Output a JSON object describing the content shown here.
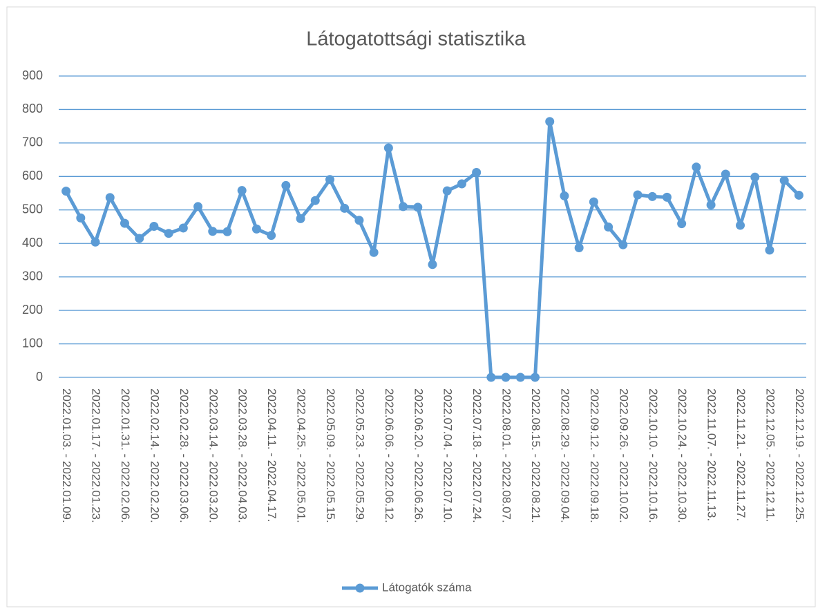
{
  "chart_data": {
    "type": "line",
    "title": "Látogatottsági statisztika",
    "categories": [
      "2022.01.03. - 2022.01.09.",
      null,
      "2022.01.17. - 2022.01.23.",
      null,
      "2022.01.31. - 2022.02.06.",
      null,
      "2022.02.14. - 2022.02.20.",
      null,
      "2022.02.28. - 2022.03.06.",
      null,
      "2022.03.14. - 2022.03.20.",
      null,
      "2022.03.28. - 2022.04.03.",
      null,
      "2022.04.11. - 2022.04.17.",
      null,
      "2022.04.25. - 2022.05.01.",
      null,
      "2022.05.09. - 2022.05.15.",
      null,
      "2022.05.23. - 2022.05.29.",
      null,
      "2022.06.06. - 2022.06.12.",
      null,
      "2022.06.20. - 2022.06.26.",
      null,
      "2022.07.04. - 2022.07.10.",
      null,
      "2022.07.18. - 2022.07.24.",
      null,
      "2022.08.01. - 2022.08.07.",
      null,
      "2022.08.15. - 2022.08.21.",
      null,
      "2022.08.29. - 2022.09.04.",
      null,
      "2022.09.12. - 2022.09.18.",
      null,
      "2022.09.26. - 2022.10.02.",
      null,
      "2022.10.10. - 2022.10.16.",
      null,
      "2022.10.24. - 2022.10.30.",
      null,
      "2022.11.07. - 2022.11.13.",
      null,
      "2022.11.21. - 2022.11.27.",
      null,
      "2022.12.05. - 2022.12.11.",
      null,
      "2022.12.19. - 2022.12.25."
    ],
    "series": [
      {
        "name": "Látogatók száma",
        "color": "#5b9bd5",
        "values": [
          556,
          476,
          404,
          537,
          460,
          415,
          451,
          430,
          446,
          510,
          436,
          435,
          558,
          443,
          424,
          573,
          474,
          528,
          591,
          505,
          469,
          373,
          685,
          510,
          508,
          337,
          557,
          578,
          612,
          0,
          0,
          0,
          0,
          764,
          542,
          387,
          524,
          449,
          396,
          545,
          540,
          538,
          459,
          628,
          515,
          607,
          454,
          598,
          380,
          588,
          544
        ]
      }
    ],
    "ylim": [
      0,
      900
    ],
    "yticks": [
      0,
      100,
      200,
      300,
      400,
      500,
      600,
      700,
      800,
      900
    ],
    "grid": true,
    "legend": "bottom"
  }
}
